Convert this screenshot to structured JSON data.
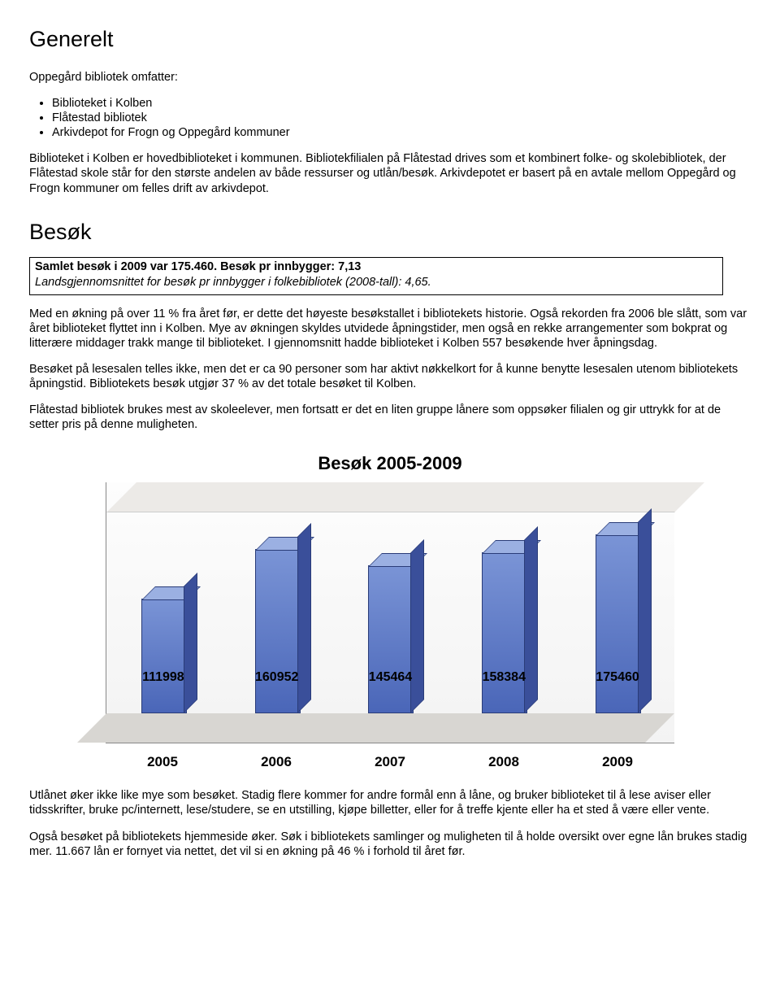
{
  "heading1": "Generelt",
  "intro": "Oppegård bibliotek omfatter:",
  "bullets": [
    "Biblioteket i Kolben",
    "Flåtestad bibliotek",
    "Arkivdepot for Frogn og Oppegård kommuner"
  ],
  "para1": "Biblioteket i Kolben er hovedbiblioteket i kommunen. Bibliotekfilialen på Flåtestad drives som et kombinert folke- og skolebibliotek, der Flåtestad skole står for den største andelen av både ressurser og utlån/besøk. Arkivdepotet er basert på en avtale mellom Oppegård og Frogn kommuner om felles drift av arkivdepot.",
  "heading2": "Besøk",
  "box": {
    "bold": "Samlet besøk i 2009 var 175.460. Besøk pr innbygger: 7,13",
    "italic": "Landsgjennomsnittet for besøk pr innbygger i folkebibliotek (2008-tall): 4,65."
  },
  "para2": "Med en økning på over 11 % fra året før, er dette det høyeste besøkstallet i bibliotekets historie. Også rekorden fra 2006 ble slått, som var året biblioteket flyttet inn i Kolben. Mye av økningen skyldes utvidede åpningstider, men også en rekke arrangementer som bokprat og litterære middager trakk mange til biblioteket. I gjennomsnitt hadde biblioteket i Kolben 557 besøkende hver åpningsdag.",
  "para3": "Besøket på lesesalen telles ikke, men det er ca 90 personer som har aktivt nøkkelkort for å kunne benytte lesesalen utenom bibliotekets åpningstid. Bibliotekets besøk utgjør 37 % av det totale besøket til Kolben.",
  "para4": "Flåtestad bibliotek brukes mest av skoleelever, men fortsatt er det en liten gruppe lånere som oppsøker filialen og gir uttrykk for at de setter pris på denne muligheten.",
  "chart": {
    "title": "Besøk 2005-2009",
    "type": "bar-3d",
    "categories": [
      "2005",
      "2006",
      "2007",
      "2008",
      "2009"
    ],
    "values": [
      111998,
      160952,
      145464,
      158384,
      175460
    ],
    "value_labels": [
      "111998",
      "160952",
      "145464",
      "158384",
      "175460"
    ],
    "max": 200000,
    "bar_fill_top": "#7a94d6",
    "bar_fill_bottom": "#4a66b8",
    "bar_side": "#3a4f9a",
    "bar_top": "#9bb0e2",
    "bar_border": "#2a3c78",
    "plot_bg": "#f3f3f3",
    "floor_bg": "#d8d6d2",
    "back_bg": "#eceae7",
    "label_fontsize": 16,
    "axis_fontsize": 17,
    "title_fontsize": 22
  },
  "para5": "Utlånet øker ikke like mye som besøket. Stadig flere kommer for andre formål enn å låne, og bruker biblioteket til å lese aviser eller tidsskrifter, bruke pc/internett, lese/studere, se en utstilling, kjøpe billetter, eller for å treffe kjente eller ha et sted å være eller vente.",
  "para6": "Også besøket på bibliotekets hjemmeside øker. Søk i bibliotekets samlinger og muligheten til å holde oversikt over egne lån brukes stadig mer. 11.667 lån er fornyet via nettet, det vil si en økning på 46 % i forhold til året før."
}
